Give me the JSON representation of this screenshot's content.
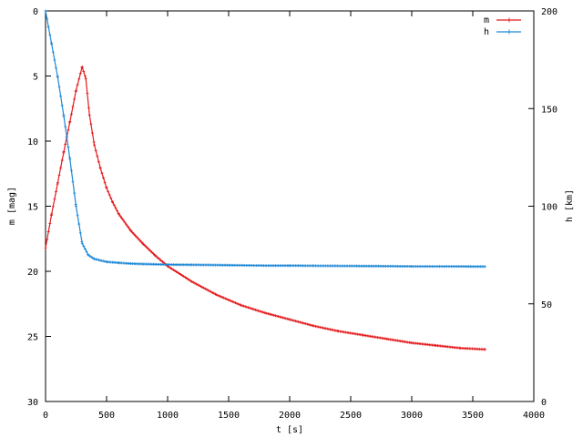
{
  "chart_data": {
    "type": "line",
    "xlabel": "t [s]",
    "ylabel_left": "m [mag]",
    "ylabel_right": "h [km]",
    "xlim": [
      0,
      4000
    ],
    "ylim_left": [
      0,
      30
    ],
    "ylim_left_inverted": true,
    "ylim_right": [
      0,
      200
    ],
    "x_ticks": [
      "0",
      "500",
      "1000",
      "1500",
      "2000",
      "2500",
      "3000",
      "3500",
      "4000"
    ],
    "y_left_ticks": [
      "0",
      "5",
      "10",
      "15",
      "20",
      "25",
      "30"
    ],
    "y_right_ticks": [
      "0",
      "50",
      "100",
      "150",
      "200"
    ],
    "grid": false,
    "legend_position": "top-right",
    "series": [
      {
        "name": "m",
        "axis": "left",
        "color": "#e41a1c",
        "points": [
          [
            0,
            18.2
          ],
          [
            50,
            15.6
          ],
          [
            100,
            13.2
          ],
          [
            150,
            10.8
          ],
          [
            200,
            8.5
          ],
          [
            250,
            6.1
          ],
          [
            300,
            4.3
          ],
          [
            330,
            5.2
          ],
          [
            360,
            8.0
          ],
          [
            400,
            10.3
          ],
          [
            450,
            12.1
          ],
          [
            500,
            13.6
          ],
          [
            550,
            14.7
          ],
          [
            600,
            15.6
          ],
          [
            700,
            16.9
          ],
          [
            800,
            17.9
          ],
          [
            900,
            18.8
          ],
          [
            1000,
            19.6
          ],
          [
            1200,
            20.8
          ],
          [
            1400,
            21.8
          ],
          [
            1600,
            22.6
          ],
          [
            1800,
            23.2
          ],
          [
            2000,
            23.7
          ],
          [
            2200,
            24.2
          ],
          [
            2400,
            24.6
          ],
          [
            2600,
            24.9
          ],
          [
            2800,
            25.2
          ],
          [
            3000,
            25.5
          ],
          [
            3200,
            25.7
          ],
          [
            3400,
            25.9
          ],
          [
            3600,
            26.0
          ]
        ]
      },
      {
        "name": "h",
        "axis": "right",
        "color": "#1e88d6",
        "points": [
          [
            0,
            200
          ],
          [
            50,
            183
          ],
          [
            100,
            166
          ],
          [
            150,
            146
          ],
          [
            200,
            124
          ],
          [
            250,
            100
          ],
          [
            300,
            81
          ],
          [
            350,
            75
          ],
          [
            400,
            73
          ],
          [
            500,
            71.5
          ],
          [
            600,
            71
          ],
          [
            700,
            70.6
          ],
          [
            800,
            70.4
          ],
          [
            1000,
            70.1
          ],
          [
            1200,
            70
          ],
          [
            1500,
            69.8
          ],
          [
            1800,
            69.6
          ],
          [
            2000,
            69.6
          ],
          [
            2200,
            69.5
          ],
          [
            2500,
            69.4
          ],
          [
            2800,
            69.3
          ],
          [
            3000,
            69.2
          ],
          [
            3300,
            69.2
          ],
          [
            3600,
            69.1
          ]
        ]
      }
    ]
  }
}
